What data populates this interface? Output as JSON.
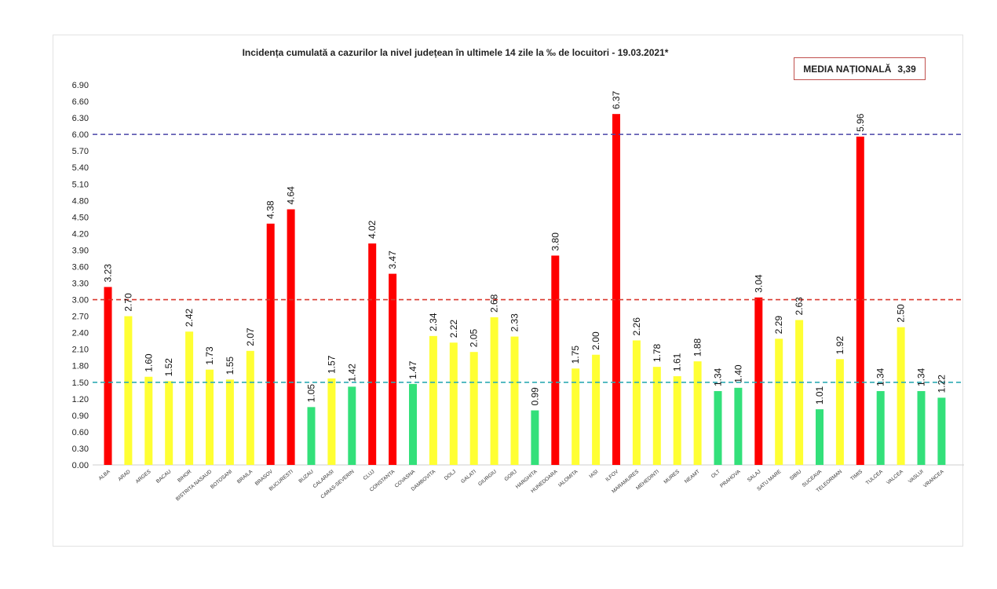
{
  "colors": {
    "red": "#ff0000",
    "yellow": "#ffff33",
    "green": "#33e07a",
    "line_purple": "#4b44a8",
    "line_red": "#d9382e",
    "line_teal": "#2eaab3"
  },
  "chart_data": {
    "type": "bar",
    "title": "Incidența cumulată a cazurilor la nivel județean în ultimele 14 zile la ‰ de locuitori - 19.03.2021*",
    "xlabel": "",
    "ylabel": "",
    "ylim": [
      0,
      6.9
    ],
    "yticks": [
      "0.00",
      "0.30",
      "0.60",
      "0.90",
      "1.20",
      "1.50",
      "1.80",
      "2.10",
      "2.40",
      "2.70",
      "3.00",
      "3.30",
      "3.60",
      "3.90",
      "4.20",
      "4.50",
      "4.80",
      "5.10",
      "5.40",
      "5.70",
      "6.00",
      "6.30",
      "6.60",
      "6.90"
    ],
    "grid": false,
    "reference_lines": [
      6.0,
      3.0,
      1.5
    ],
    "national_average": {
      "label": "MEDIA NAȚIONALĂ",
      "value": "3,39"
    },
    "categories": [
      "ALBA",
      "ARAD",
      "ARGES",
      "BACAU",
      "BIHOR",
      "BISTRITA NASAUD",
      "BOTOSANI",
      "BRAILA",
      "BRASOV",
      "BUCURESTI",
      "BUZAU",
      "CALARASI",
      "CARAS-SEVERIN",
      "CLUJ",
      "CONSTANTA",
      "COVASNA",
      "DAMBOVITA",
      "DOLJ",
      "GALATI",
      "GIURGIU",
      "GORJ",
      "HARGHITA",
      "HUNEDOARA",
      "IALOMITA",
      "IASI",
      "ILFOV",
      "MARAMURES",
      "MEHEDINTI",
      "MURES",
      "NEAMT",
      "OLT",
      "PRAHOVA",
      "SALAJ",
      "SATU MARE",
      "SIBIU",
      "SUCEAVA",
      "TELEORMAN",
      "TIMIS",
      "TULCEA",
      "VALCEA",
      "VASLUI",
      "VRANCEA"
    ],
    "values": [
      3.23,
      2.7,
      1.6,
      1.52,
      2.42,
      1.73,
      1.55,
      2.07,
      4.38,
      4.64,
      1.05,
      1.57,
      1.42,
      4.02,
      3.47,
      1.47,
      2.34,
      2.22,
      2.05,
      2.68,
      2.33,
      0.99,
      3.8,
      1.75,
      2.0,
      6.37,
      2.26,
      1.78,
      1.61,
      1.88,
      1.34,
      1.4,
      3.04,
      2.29,
      2.63,
      1.01,
      1.92,
      5.96,
      1.34,
      2.5,
      1.34,
      1.22
    ],
    "value_labels": [
      "3.23",
      "2.70",
      "1.60",
      "1.52",
      "2.42",
      "1.73",
      "1.55",
      "2.07",
      "4.38",
      "4.64",
      "1.05",
      "1.57",
      "1.42",
      "4.02",
      "3.47",
      "1.47",
      "2.34",
      "2.22",
      "2.05",
      "2.68",
      "2.33",
      "0.99",
      "3.80",
      "1.75",
      "2.00",
      "6.37",
      "2.26",
      "1.78",
      "1.61",
      "1.88",
      "1.34",
      "1.40",
      "3.04",
      "2.29",
      "2.63",
      "1.01",
      "1.92",
      "5.96",
      "1.34",
      "2.50",
      "1.34",
      "1.22"
    ],
    "bar_colors": [
      "red",
      "yellow",
      "yellow",
      "yellow",
      "yellow",
      "yellow",
      "yellow",
      "yellow",
      "red",
      "red",
      "green",
      "yellow",
      "green",
      "red",
      "red",
      "green",
      "yellow",
      "yellow",
      "yellow",
      "yellow",
      "yellow",
      "green",
      "red",
      "yellow",
      "yellow",
      "red",
      "yellow",
      "yellow",
      "yellow",
      "yellow",
      "green",
      "green",
      "red",
      "yellow",
      "yellow",
      "green",
      "yellow",
      "red",
      "green",
      "yellow",
      "green",
      "green"
    ]
  }
}
